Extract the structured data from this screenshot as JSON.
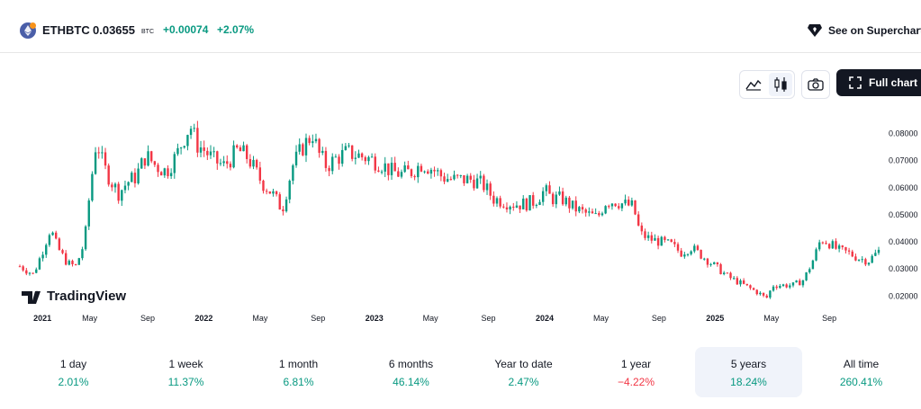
{
  "header": {
    "symbol": "ETHBTC",
    "price": "0.03655",
    "unit": "BTC",
    "change": "+0.00074",
    "change_pct": "+2.07%",
    "superchart_label": "See on Supercharts"
  },
  "toolbar": {
    "full_chart_label": "Full chart"
  },
  "watermark": "TradingView",
  "colors": {
    "up": "#089981",
    "down": "#f23645",
    "text": "#131722",
    "active_bg": "#f0f3fa"
  },
  "icons": [
    "ethereum-icon",
    "superchart-icon",
    "area-chart-icon",
    "candles-icon",
    "camera-icon",
    "fullscreen-icon"
  ],
  "chart_data": {
    "type": "candlestick",
    "interval": "week",
    "y_ticks": [
      0.08,
      0.07,
      0.06,
      0.05,
      0.04,
      0.03,
      0.02
    ],
    "y_tick_labels": [
      "0.08000",
      "0.07000",
      "0.06000",
      "0.05000",
      "0.04000",
      "0.03000",
      "0.02000"
    ],
    "ylim": [
      0.0158,
      0.0895
    ],
    "x_ticks": [
      {
        "label": "2021",
        "t": 2021.0,
        "bold": true
      },
      {
        "label": "May",
        "t": 2021.33,
        "bold": false
      },
      {
        "label": "Sep",
        "t": 2021.67,
        "bold": false
      },
      {
        "label": "2022",
        "t": 2022.0,
        "bold": true
      },
      {
        "label": "May",
        "t": 2022.33,
        "bold": false
      },
      {
        "label": "Sep",
        "t": 2022.67,
        "bold": false
      },
      {
        "label": "2023",
        "t": 2023.0,
        "bold": true
      },
      {
        "label": "May",
        "t": 2023.33,
        "bold": false
      },
      {
        "label": "Sep",
        "t": 2023.67,
        "bold": false
      },
      {
        "label": "2024",
        "t": 2024.0,
        "bold": true
      },
      {
        "label": "May",
        "t": 2024.33,
        "bold": false
      },
      {
        "label": "Sep",
        "t": 2024.67,
        "bold": false
      },
      {
        "label": "2025",
        "t": 2025.0,
        "bold": true
      },
      {
        "label": "May",
        "t": 2025.33,
        "bold": false
      },
      {
        "label": "Sep",
        "t": 2025.67,
        "bold": false
      }
    ],
    "xlim": [
      2020.92,
      2025.96
    ],
    "close_path": [
      [
        2020.92,
        0.031
      ],
      [
        2021.0,
        0.028
      ],
      [
        2021.05,
        0.036
      ],
      [
        2021.1,
        0.045
      ],
      [
        2021.14,
        0.038
      ],
      [
        2021.2,
        0.032
      ],
      [
        2021.25,
        0.031
      ],
      [
        2021.3,
        0.04
      ],
      [
        2021.33,
        0.058
      ],
      [
        2021.37,
        0.078
      ],
      [
        2021.41,
        0.068
      ],
      [
        2021.46,
        0.062
      ],
      [
        2021.5,
        0.058
      ],
      [
        2021.55,
        0.062
      ],
      [
        2021.6,
        0.064
      ],
      [
        2021.66,
        0.072
      ],
      [
        2021.72,
        0.068
      ],
      [
        2021.78,
        0.066
      ],
      [
        2021.84,
        0.072
      ],
      [
        2021.88,
        0.078
      ],
      [
        2021.92,
        0.083
      ],
      [
        2021.96,
        0.076
      ],
      [
        2022.0,
        0.074
      ],
      [
        2022.06,
        0.07
      ],
      [
        2022.12,
        0.068
      ],
      [
        2022.2,
        0.074
      ],
      [
        2022.26,
        0.071
      ],
      [
        2022.34,
        0.062
      ],
      [
        2022.4,
        0.058
      ],
      [
        2022.46,
        0.052
      ],
      [
        2022.52,
        0.068
      ],
      [
        2022.58,
        0.075
      ],
      [
        2022.64,
        0.08
      ],
      [
        2022.67,
        0.073
      ],
      [
        2022.72,
        0.068
      ],
      [
        2022.78,
        0.071
      ],
      [
        2022.84,
        0.073
      ],
      [
        2022.9,
        0.072
      ],
      [
        2022.96,
        0.071
      ],
      [
        2023.04,
        0.069
      ],
      [
        2023.1,
        0.066
      ],
      [
        2023.16,
        0.065
      ],
      [
        2023.22,
        0.066
      ],
      [
        2023.28,
        0.069
      ],
      [
        2023.34,
        0.067
      ],
      [
        2023.4,
        0.064
      ],
      [
        2023.46,
        0.063
      ],
      [
        2023.52,
        0.063
      ],
      [
        2023.58,
        0.063
      ],
      [
        2023.64,
        0.061
      ],
      [
        2023.7,
        0.056
      ],
      [
        2023.76,
        0.055
      ],
      [
        2023.82,
        0.054
      ],
      [
        2023.88,
        0.054
      ],
      [
        2023.94,
        0.055
      ],
      [
        2024.0,
        0.059
      ],
      [
        2024.04,
        0.056
      ],
      [
        2024.1,
        0.056
      ],
      [
        2024.16,
        0.053
      ],
      [
        2024.22,
        0.051
      ],
      [
        2024.26,
        0.05
      ],
      [
        2024.31,
        0.049
      ],
      [
        2024.36,
        0.055
      ],
      [
        2024.42,
        0.055
      ],
      [
        2024.46,
        0.054
      ],
      [
        2024.52,
        0.053
      ],
      [
        2024.56,
        0.043
      ],
      [
        2024.62,
        0.041
      ],
      [
        2024.68,
        0.04
      ],
      [
        2024.74,
        0.039
      ],
      [
        2024.8,
        0.036
      ],
      [
        2024.86,
        0.038
      ],
      [
        2024.9,
        0.036
      ],
      [
        2024.96,
        0.033
      ],
      [
        2025.02,
        0.03
      ],
      [
        2025.08,
        0.027
      ],
      [
        2025.14,
        0.025
      ],
      [
        2025.2,
        0.023
      ],
      [
        2025.26,
        0.021
      ],
      [
        2025.3,
        0.019
      ],
      [
        2025.34,
        0.024
      ],
      [
        2025.4,
        0.024
      ],
      [
        2025.46,
        0.024
      ],
      [
        2025.52,
        0.026
      ],
      [
        2025.58,
        0.034
      ],
      [
        2025.62,
        0.041
      ],
      [
        2025.66,
        0.04
      ],
      [
        2025.72,
        0.037
      ],
      [
        2025.78,
        0.036
      ],
      [
        2025.84,
        0.034
      ],
      [
        2025.9,
        0.033
      ],
      [
        2025.96,
        0.0366
      ]
    ]
  },
  "ranges": [
    {
      "label": "1 day",
      "value": "2.01%",
      "sign": "pos",
      "active": false
    },
    {
      "label": "1 week",
      "value": "11.37%",
      "sign": "pos",
      "active": false
    },
    {
      "label": "1 month",
      "value": "6.81%",
      "sign": "pos",
      "active": false
    },
    {
      "label": "6 months",
      "value": "46.14%",
      "sign": "pos",
      "active": false
    },
    {
      "label": "Year to date",
      "value": "2.47%",
      "sign": "pos",
      "active": false
    },
    {
      "label": "1 year",
      "value": "−4.22%",
      "sign": "neg",
      "active": false
    },
    {
      "label": "5 years",
      "value": "18.24%",
      "sign": "pos",
      "active": true
    },
    {
      "label": "All time",
      "value": "260.41%",
      "sign": "pos",
      "active": false
    }
  ]
}
